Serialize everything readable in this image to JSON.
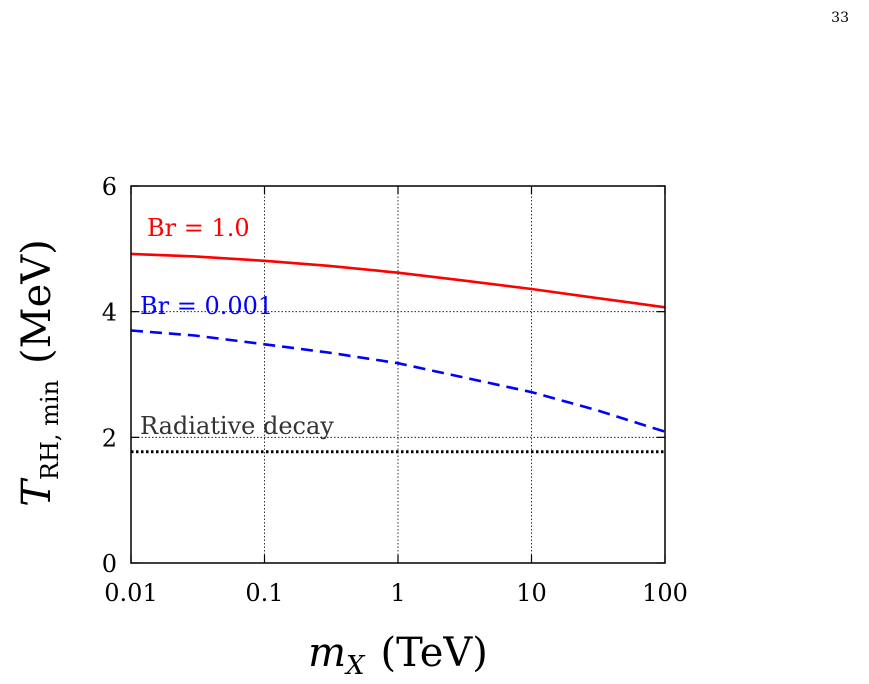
{
  "page": {
    "number": "33"
  },
  "chart_data": {
    "type": "line",
    "xscale": "log",
    "xlim": [
      0.01,
      100
    ],
    "ylim": [
      0,
      6
    ],
    "xticks": [
      0.01,
      0.1,
      1,
      10,
      100
    ],
    "xtick_labels": [
      "0.01",
      "0.1",
      "1",
      "10",
      "100"
    ],
    "yticks": [
      0,
      2,
      4,
      6
    ],
    "ytick_labels": [
      "0",
      "2",
      "4",
      "6"
    ],
    "xlabel": {
      "var": "m",
      "sub": "X",
      "unit": "(TeV)"
    },
    "ylabel": {
      "var": "T",
      "sub": "RH, min",
      "unit": "(MeV)"
    },
    "grid": true,
    "series": [
      {
        "name": "Br = 1.0",
        "color": "#ff0000",
        "style": "solid",
        "x": [
          0.01,
          0.03,
          0.1,
          0.3,
          1,
          3,
          10,
          30,
          100
        ],
        "y": [
          4.92,
          4.88,
          4.81,
          4.73,
          4.62,
          4.5,
          4.36,
          4.22,
          4.07
        ]
      },
      {
        "name": "Br = 0.001",
        "color": "#0000ff",
        "style": "dashed",
        "x": [
          0.01,
          0.03,
          0.1,
          0.3,
          1,
          3,
          10,
          30,
          100
        ],
        "y": [
          3.7,
          3.62,
          3.48,
          3.35,
          3.18,
          2.96,
          2.72,
          2.44,
          2.09
        ]
      },
      {
        "name": "Radiative decay",
        "color": "#000000",
        "style": "dotted",
        "x": [
          0.01,
          100
        ],
        "y": [
          1.77,
          1.77
        ]
      }
    ]
  }
}
